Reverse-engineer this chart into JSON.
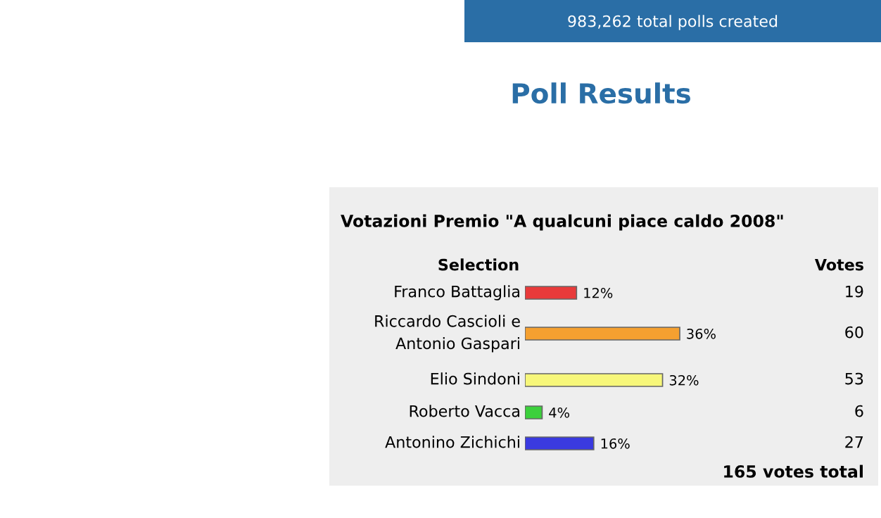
{
  "chart_data": {
    "type": "bar",
    "orientation": "horizontal",
    "title": "Votazioni Premio \"A qualcuni piace caldo 2008\"",
    "ylabel": "Selection",
    "categories": [
      "Franco Battaglia",
      "Riccardo Cascioli e\nAntonio Gaspari",
      "Elio Sindoni",
      "Roberto Vacca",
      "Antonino Zichichi"
    ],
    "values": [
      12,
      36,
      32,
      4,
      16
    ],
    "colors": [
      "#e83a3a",
      "#f5a030",
      "#f7f77a",
      "#3cd03c",
      "#3a3ae0"
    ],
    "value_labels": [
      "12%",
      "36%",
      "32%",
      "4%",
      "16%"
    ],
    "annotations": [
      "983,262 total polls created",
      "Poll Results",
      "Votes",
      "19",
      "60",
      "53",
      "6",
      "27",
      "165 votes total"
    ]
  }
}
